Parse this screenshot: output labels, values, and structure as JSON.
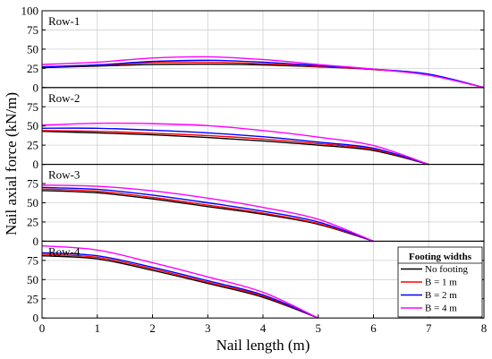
{
  "chart_data": {
    "type": "line",
    "xlabel": "Nail length (m)",
    "ylabel": "Nail axial force (kN/m)",
    "xlim": [
      0,
      8
    ],
    "ylim": [
      0,
      100
    ],
    "x_ticks": [
      "0",
      "1",
      "2",
      "3",
      "4",
      "5",
      "6",
      "7",
      "8"
    ],
    "y_ticks": [
      "0",
      "25",
      "50",
      "75",
      "100"
    ],
    "grid": true,
    "legend": {
      "title": "Footing widths",
      "placement": "bottom-right",
      "entries": [
        {
          "name": "No footing",
          "color": "#000000"
        },
        {
          "name": "B = 1 m",
          "color": "#ff0000"
        },
        {
          "name": "B = 2 m",
          "color": "#0000ff"
        },
        {
          "name": "B = 4 m",
          "color": "#ff00ff"
        }
      ]
    },
    "panels": [
      {
        "label": "Row-1",
        "series": [
          {
            "name": "No footing",
            "x": [
              0,
              1,
              2,
              3,
              4,
              5,
              6,
              7,
              8
            ],
            "y": [
              26,
              28,
              30,
              30.5,
              29.5,
              27,
              23.5,
              17,
              0
            ]
          },
          {
            "name": "B = 1 m",
            "x": [
              0,
              1,
              2,
              3,
              4,
              5,
              6,
              7,
              8
            ],
            "y": [
              27,
              29,
              32.5,
              33,
              31,
              27.5,
              23.5,
              17,
              0
            ]
          },
          {
            "name": "B = 2 m",
            "x": [
              0,
              1,
              2,
              3,
              4,
              5,
              6,
              7,
              8
            ],
            "y": [
              27,
              29.5,
              34,
              35.5,
              33,
              28.5,
              24,
              17.5,
              0
            ]
          },
          {
            "name": "B = 4 m",
            "x": [
              0,
              1,
              2,
              3,
              4,
              5,
              6,
              7,
              8
            ],
            "y": [
              30,
              33,
              38.5,
              40,
              36.5,
              30,
              24,
              16,
              0
            ]
          }
        ]
      },
      {
        "label": "Row-2",
        "series": [
          {
            "name": "No footing",
            "x": [
              0,
              1,
              2,
              3,
              4,
              5,
              6,
              7
            ],
            "y": [
              43,
              41,
              38.5,
              35,
              30.5,
              25,
              18,
              0
            ]
          },
          {
            "name": "B = 1 m",
            "x": [
              0,
              1,
              2,
              3,
              4,
              5,
              6,
              7
            ],
            "y": [
              44,
              43,
              40.5,
              37.5,
              33,
              27,
              19.5,
              0
            ]
          },
          {
            "name": "B = 2 m",
            "x": [
              0,
              1,
              2,
              3,
              4,
              5,
              6,
              7
            ],
            "y": [
              47,
              47,
              44.5,
              41,
              36,
              29,
              21,
              0
            ]
          },
          {
            "name": "B = 4 m",
            "x": [
              0,
              1,
              2,
              3,
              4,
              5,
              6,
              7
            ],
            "y": [
              51,
              53.5,
              53,
              50.5,
              44,
              35.5,
              24.5,
              0
            ]
          }
        ]
      },
      {
        "label": "Row-3",
        "series": [
          {
            "name": "No footing",
            "x": [
              0,
              1,
              2,
              3,
              4,
              5,
              6
            ],
            "y": [
              66,
              63,
              55,
              45,
              35,
              22,
              0
            ]
          },
          {
            "name": "B = 1 m",
            "x": [
              0,
              1,
              2,
              3,
              4,
              5,
              6
            ],
            "y": [
              68,
              65,
              57,
              47,
              36.5,
              23,
              0
            ]
          },
          {
            "name": "B = 2 m",
            "x": [
              0,
              1,
              2,
              3,
              4,
              5,
              6
            ],
            "y": [
              70,
              67.5,
              60,
              50,
              39,
              25,
              0
            ]
          },
          {
            "name": "B = 4 m",
            "x": [
              0,
              1,
              2,
              3,
              4,
              5,
              6
            ],
            "y": [
              73,
              71.5,
              65.5,
              56,
              44,
              28.5,
              0
            ]
          }
        ]
      },
      {
        "label": "Row-4",
        "series": [
          {
            "name": "No footing",
            "x": [
              0,
              1,
              2,
              3,
              4,
              5
            ],
            "y": [
              81,
              77,
              62,
              45,
              27,
              0
            ]
          },
          {
            "name": "B = 1 m",
            "x": [
              0,
              1,
              2,
              3,
              4,
              5
            ],
            "y": [
              83,
              79,
              64,
              46.5,
              28.5,
              0
            ]
          },
          {
            "name": "B = 2 m",
            "x": [
              0,
              1,
              2,
              3,
              4,
              5
            ],
            "y": [
              85,
              81,
              66,
              48.5,
              30,
              0
            ]
          },
          {
            "name": "B = 4 m",
            "x": [
              0,
              1,
              2,
              3,
              4,
              5
            ],
            "y": [
              94,
              88.5,
              72,
              53.5,
              33.5,
              0
            ]
          }
        ]
      }
    ]
  }
}
